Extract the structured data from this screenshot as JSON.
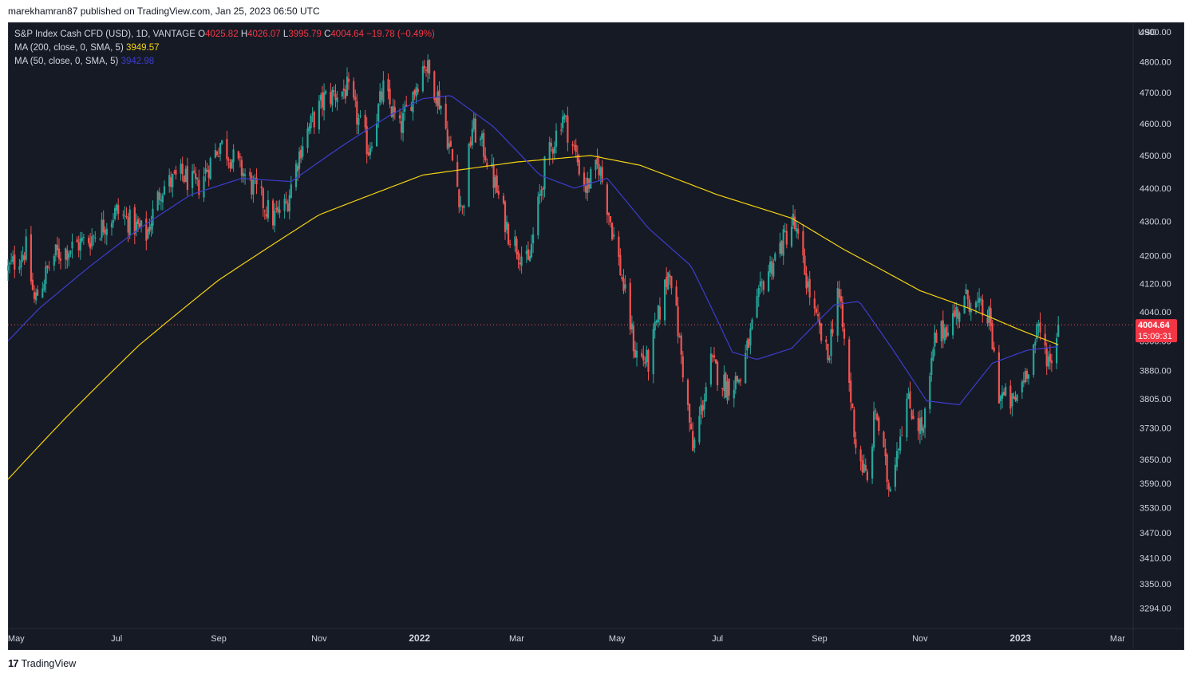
{
  "header": {
    "published": "marekhamran87 published on TradingView.com, Jan 25, 2023 06:50 UTC"
  },
  "legend": {
    "symbol": "S&P Index Cash CFD (USD), 1D, VANTAGE",
    "o_label": "O",
    "o_value": "4025.82",
    "h_label": "H",
    "h_value": "4026.07",
    "l_label": "L",
    "l_value": "3995.79",
    "c_label": "C",
    "c_value": "4004.64",
    "change": "−19.78 (−0.49%)",
    "ma200_label": "MA (200, close, 0, SMA, 5)",
    "ma200_value": "3949.57",
    "ma50_label": "MA (50, close, 0, SMA, 5)",
    "ma50_value": "3942.98"
  },
  "footer": {
    "brand": "TradingView",
    "logo_text": "17"
  },
  "colors": {
    "up": "#26a69a",
    "down": "#ef5350",
    "ma200": "#f5d311",
    "ma50": "#3d3dcc",
    "background": "#161a25",
    "price_tag": "#f23645"
  },
  "chart_data": {
    "type": "candlestick",
    "title": "S&P Index Cash CFD (USD), 1D, VANTAGE",
    "currency": "USD",
    "current_price": "4004.64",
    "countdown": "15:09:31",
    "y_ticks": [
      3294,
      3350,
      3410,
      3470,
      3530,
      3590,
      3650,
      3730,
      3805,
      3880,
      3960,
      4040,
      4120,
      4200,
      4300,
      4400,
      4500,
      4600,
      4700,
      4800,
      4900
    ],
    "y_tick_labels": [
      "3294.00",
      "3350.00",
      "3410.00",
      "3470.00",
      "3530.00",
      "3590.00",
      "3650.00",
      "3730.00",
      "3805.00",
      "3880.00",
      "3960.00",
      "4040.00",
      "4120.00",
      "4200.00",
      "4300.00",
      "4400.00",
      "4500.00",
      "4600.00",
      "4700.00",
      "4800.00",
      "4900.00"
    ],
    "x_ticks": [
      "May",
      "Jul",
      "Sep",
      "Nov",
      "2022",
      "Mar",
      "May",
      "Jul",
      "Sep",
      "Nov",
      "2023",
      "Mar"
    ],
    "x_ticks_bold": [
      "2022",
      "2023"
    ],
    "close_anchors": [
      [
        "2021-04-26",
        4160
      ],
      [
        "2021-05-07",
        4220
      ],
      [
        "2021-05-12",
        4070
      ],
      [
        "2021-05-24",
        4200
      ],
      [
        "2021-06-15",
        4250
      ],
      [
        "2021-07-01",
        4330
      ],
      [
        "2021-07-19",
        4260
      ],
      [
        "2021-07-28",
        4400
      ],
      [
        "2021-08-10",
        4440
      ],
      [
        "2021-08-19",
        4400
      ],
      [
        "2021-09-02",
        4540
      ],
      [
        "2021-09-17",
        4440
      ],
      [
        "2021-10-04",
        4310
      ],
      [
        "2021-10-12",
        4350
      ],
      [
        "2021-10-22",
        4545
      ],
      [
        "2021-11-04",
        4680
      ],
      [
        "2021-11-18",
        4710
      ],
      [
        "2021-12-01",
        4520
      ],
      [
        "2021-12-10",
        4710
      ],
      [
        "2021-12-20",
        4580
      ],
      [
        "2022-01-04",
        4800
      ],
      [
        "2022-01-14",
        4660
      ],
      [
        "2022-01-27",
        4330
      ],
      [
        "2022-02-02",
        4590
      ],
      [
        "2022-02-10",
        4510
      ],
      [
        "2022-02-24",
        4270
      ],
      [
        "2022-03-08",
        4170
      ],
      [
        "2022-03-18",
        4460
      ],
      [
        "2022-03-29",
        4630
      ],
      [
        "2022-04-12",
        4400
      ],
      [
        "2022-04-20",
        4470
      ],
      [
        "2022-05-03",
        4160
      ],
      [
        "2022-05-12",
        3930
      ],
      [
        "2022-05-20",
        3900
      ],
      [
        "2022-06-02",
        4170
      ],
      [
        "2022-06-16",
        3670
      ],
      [
        "2022-06-27",
        3900
      ],
      [
        "2022-07-06",
        3840
      ],
      [
        "2022-07-15",
        3860
      ],
      [
        "2022-07-29",
        4130
      ],
      [
        "2022-08-16",
        4300
      ],
      [
        "2022-08-29",
        4030
      ],
      [
        "2022-09-06",
        3910
      ],
      [
        "2022-09-12",
        4110
      ],
      [
        "2022-09-23",
        3690
      ],
      [
        "2022-09-30",
        3590
      ],
      [
        "2022-10-05",
        3780
      ],
      [
        "2022-10-13",
        3580
      ],
      [
        "2022-10-24",
        3800
      ],
      [
        "2022-11-03",
        3720
      ],
      [
        "2022-11-10",
        3960
      ],
      [
        "2022-11-30",
        4080
      ],
      [
        "2022-12-13",
        4020
      ],
      [
        "2022-12-19",
        3820
      ],
      [
        "2022-12-28",
        3790
      ],
      [
        "2023-01-06",
        3900
      ],
      [
        "2023-01-12",
        3990
      ],
      [
        "2023-01-19",
        3900
      ],
      [
        "2023-01-24",
        4005
      ]
    ],
    "ma200_anchors": [
      [
        "2021-04-26",
        3600
      ],
      [
        "2021-06-01",
        3760
      ],
      [
        "2021-07-15",
        3950
      ],
      [
        "2021-09-01",
        4130
      ],
      [
        "2021-11-01",
        4320
      ],
      [
        "2022-01-03",
        4440
      ],
      [
        "2022-03-01",
        4480
      ],
      [
        "2022-04-15",
        4500
      ],
      [
        "2022-05-15",
        4470
      ],
      [
        "2022-07-01",
        4380
      ],
      [
        "2022-08-15",
        4310
      ],
      [
        "2022-09-15",
        4220
      ],
      [
        "2022-11-01",
        4100
      ],
      [
        "2022-12-01",
        4050
      ],
      [
        "2023-01-01",
        3990
      ],
      [
        "2023-01-24",
        3950
      ]
    ],
    "ma50_anchors": [
      [
        "2021-04-26",
        3960
      ],
      [
        "2021-05-15",
        4050
      ],
      [
        "2021-06-15",
        4170
      ],
      [
        "2021-07-15",
        4280
      ],
      [
        "2021-08-15",
        4380
      ],
      [
        "2021-09-15",
        4430
      ],
      [
        "2021-10-15",
        4420
      ],
      [
        "2021-11-15",
        4530
      ],
      [
        "2021-12-15",
        4630
      ],
      [
        "2022-01-03",
        4680
      ],
      [
        "2022-01-20",
        4690
      ],
      [
        "2022-02-15",
        4590
      ],
      [
        "2022-03-15",
        4440
      ],
      [
        "2022-04-05",
        4400
      ],
      [
        "2022-04-25",
        4430
      ],
      [
        "2022-05-20",
        4280
      ],
      [
        "2022-06-15",
        4170
      ],
      [
        "2022-07-10",
        3930
      ],
      [
        "2022-07-25",
        3910
      ],
      [
        "2022-08-15",
        3940
      ],
      [
        "2022-09-10",
        4060
      ],
      [
        "2022-09-25",
        4070
      ],
      [
        "2022-10-15",
        3940
      ],
      [
        "2022-11-05",
        3800
      ],
      [
        "2022-11-25",
        3790
      ],
      [
        "2022-12-15",
        3900
      ],
      [
        "2023-01-05",
        3935
      ],
      [
        "2023-01-24",
        3945
      ]
    ],
    "y_log_scale": true,
    "grid": false,
    "x_range": [
      "2021-04-26",
      "2023-03-10"
    ],
    "y_range": [
      3250,
      4930
    ]
  }
}
